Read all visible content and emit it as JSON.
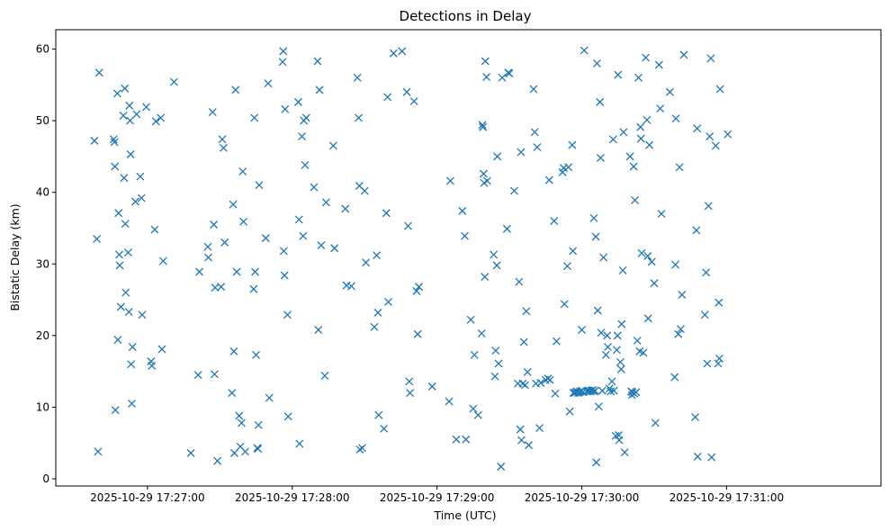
{
  "chart_data": {
    "type": "scatter",
    "title": "Detections in Delay",
    "xlabel": "Time (UTC)",
    "ylabel": "Bistatic Delay (km)",
    "x_start": "2025-10-29 17:26:38",
    "xlim_seconds": [
      -16,
      326
    ],
    "ylim": [
      -1,
      62.7
    ],
    "xticks": [
      {
        "t": 22,
        "label": "2025-10-29 17:27:00"
      },
      {
        "t": 82,
        "label": "2025-10-29 17:28:00"
      },
      {
        "t": 142,
        "label": "2025-10-29 17:29:00"
      },
      {
        "t": 202,
        "label": "2025-10-29 17:30:00"
      },
      {
        "t": 262,
        "label": "2025-10-29 17:31:00"
      }
    ],
    "yticks": [
      0,
      10,
      20,
      30,
      40,
      50,
      60
    ],
    "marker": "x",
    "color": "#1f77b4",
    "points": [
      [
        0,
        47.2
      ],
      [
        1,
        33.5
      ],
      [
        1.5,
        3.8
      ],
      [
        2,
        56.7
      ],
      [
        8,
        47.4
      ],
      [
        8.3,
        47
      ],
      [
        8.5,
        43.6
      ],
      [
        8.7,
        9.6
      ],
      [
        9.5,
        53.8
      ],
      [
        9.7,
        19.4
      ],
      [
        10,
        37.1
      ],
      [
        10.3,
        31.3
      ],
      [
        10.5,
        29.8
      ],
      [
        11,
        24
      ],
      [
        12,
        50.7
      ],
      [
        12.3,
        42
      ],
      [
        12.6,
        54.5
      ],
      [
        12.8,
        35.6
      ],
      [
        13,
        26
      ],
      [
        14,
        31.6
      ],
      [
        14.3,
        23.3
      ],
      [
        14.5,
        52.1
      ],
      [
        14.8,
        50
      ],
      [
        15,
        45.3
      ],
      [
        15.2,
        16
      ],
      [
        15.5,
        10.5
      ],
      [
        15.8,
        18.4
      ],
      [
        17,
        38.7
      ],
      [
        17.5,
        50.9
      ],
      [
        19,
        42.2
      ],
      [
        19.5,
        39.2
      ],
      [
        19.8,
        22.9
      ],
      [
        21.5,
        51.9
      ],
      [
        23.5,
        16.4
      ],
      [
        23.8,
        15.8
      ],
      [
        25,
        34.8
      ],
      [
        25.5,
        49.9
      ],
      [
        27.5,
        50.4
      ],
      [
        28,
        18.1
      ],
      [
        28.5,
        30.4
      ],
      [
        33,
        55.4
      ],
      [
        40,
        3.6
      ],
      [
        43,
        14.5
      ],
      [
        43.5,
        28.9
      ],
      [
        47,
        32.4
      ],
      [
        47.2,
        30.9
      ],
      [
        49,
        51.2
      ],
      [
        49.5,
        35.5
      ],
      [
        49.8,
        14.6
      ],
      [
        50,
        26.7
      ],
      [
        51,
        2.5
      ],
      [
        52.5,
        26.8
      ],
      [
        53,
        47.4
      ],
      [
        53.5,
        46.2
      ],
      [
        54,
        33
      ],
      [
        57,
        12
      ],
      [
        57.5,
        38.3
      ],
      [
        57.8,
        17.8
      ],
      [
        58,
        3.6
      ],
      [
        58.5,
        54.3
      ],
      [
        59,
        28.9
      ],
      [
        60,
        8.8
      ],
      [
        60.5,
        4.5
      ],
      [
        61,
        7.8
      ],
      [
        61.5,
        42.9
      ],
      [
        61.8,
        35.9
      ],
      [
        62.5,
        3.8
      ],
      [
        66,
        26.5
      ],
      [
        66.3,
        50.4
      ],
      [
        66.6,
        28.9
      ],
      [
        67,
        17.3
      ],
      [
        67.5,
        4.3
      ],
      [
        67.8,
        4.2
      ],
      [
        68,
        7.5
      ],
      [
        68.3,
        41
      ],
      [
        71,
        33.6
      ],
      [
        72,
        55.2
      ],
      [
        72.5,
        11.3
      ],
      [
        78,
        58.2
      ],
      [
        78.3,
        59.7
      ],
      [
        78.5,
        31.8
      ],
      [
        78.8,
        28.4
      ],
      [
        79,
        51.6
      ],
      [
        80,
        22.9
      ],
      [
        80.3,
        8.7
      ],
      [
        84.5,
        52.6
      ],
      [
        84.8,
        36.2
      ],
      [
        85,
        4.9
      ],
      [
        86,
        47.8
      ],
      [
        86.5,
        33.9
      ],
      [
        86.8,
        50
      ],
      [
        87.3,
        43.8
      ],
      [
        87.8,
        50.4
      ],
      [
        91,
        40.7
      ],
      [
        92.5,
        58.3
      ],
      [
        92.8,
        20.8
      ],
      [
        93.3,
        54.3
      ],
      [
        94,
        32.6
      ],
      [
        95.5,
        14.4
      ],
      [
        96,
        38.6
      ],
      [
        99,
        46.5
      ],
      [
        99.5,
        32.2
      ],
      [
        104,
        37.7
      ],
      [
        104.5,
        27
      ],
      [
        106.5,
        26.9
      ],
      [
        109,
        56
      ],
      [
        109.5,
        50.4
      ],
      [
        109.8,
        40.9
      ],
      [
        110,
        4.1
      ],
      [
        111,
        4.3
      ],
      [
        112,
        40.2
      ],
      [
        112.5,
        30.2
      ],
      [
        116,
        21.2
      ],
      [
        117,
        31.2
      ],
      [
        117.5,
        23.2
      ],
      [
        117.8,
        8.9
      ],
      [
        120,
        7
      ],
      [
        121,
        37.1
      ],
      [
        121.5,
        53.3
      ],
      [
        121.8,
        24.7
      ],
      [
        124,
        59.4
      ],
      [
        127.5,
        59.7
      ],
      [
        129.5,
        54
      ],
      [
        130,
        35.3
      ],
      [
        130.5,
        13.6
      ],
      [
        130.8,
        12
      ],
      [
        132.5,
        52.7
      ],
      [
        133.5,
        26.2
      ],
      [
        134,
        20.2
      ],
      [
        134.5,
        26.8
      ],
      [
        140,
        12.9
      ],
      [
        147,
        10.8
      ],
      [
        147.5,
        41.6
      ],
      [
        150,
        5.5
      ],
      [
        152.5,
        37.4
      ],
      [
        153.5,
        33.9
      ],
      [
        154,
        5.5
      ],
      [
        156,
        22.2
      ],
      [
        157,
        9.8
      ],
      [
        157.5,
        17.3
      ],
      [
        159,
        8.9
      ],
      [
        160.5,
        20.3
      ],
      [
        160.8,
        49.4
      ],
      [
        161,
        49.1
      ],
      [
        161.3,
        42.6
      ],
      [
        161.5,
        41.3
      ],
      [
        161.8,
        28.2
      ],
      [
        162,
        58.3
      ],
      [
        162.5,
        56.1
      ],
      [
        162.8,
        41.6
      ],
      [
        165.5,
        31.3
      ],
      [
        166,
        14.3
      ],
      [
        166.3,
        17.9
      ],
      [
        166.8,
        29.8
      ],
      [
        167,
        45
      ],
      [
        167.5,
        16.1
      ],
      [
        168.5,
        1.7
      ],
      [
        169,
        56
      ],
      [
        171,
        34.9
      ],
      [
        171.5,
        56.7
      ],
      [
        172,
        56.6
      ],
      [
        174,
        40.2
      ],
      [
        175.5,
        13.3
      ],
      [
        176,
        27.5
      ],
      [
        176.5,
        6.9
      ],
      [
        176.8,
        45.6
      ],
      [
        177,
        5.4
      ],
      [
        177.5,
        13.3
      ],
      [
        178,
        19.1
      ],
      [
        178.5,
        13.1
      ],
      [
        179,
        23.4
      ],
      [
        179.5,
        14.9
      ],
      [
        180,
        4.7
      ],
      [
        182,
        54.4
      ],
      [
        182.5,
        48.4
      ],
      [
        183,
        13.3
      ],
      [
        183.5,
        46.3
      ],
      [
        184.5,
        7.1
      ],
      [
        185,
        13.4
      ],
      [
        187,
        13.8
      ],
      [
        188,
        14
      ],
      [
        188.5,
        41.7
      ],
      [
        188.8,
        13.8
      ],
      [
        190.5,
        36
      ],
      [
        191,
        11.9
      ],
      [
        191.5,
        19.2
      ],
      [
        194,
        42.8
      ],
      [
        194.5,
        43.4
      ],
      [
        194.8,
        24.4
      ],
      [
        196,
        29.7
      ],
      [
        196.5,
        43.5
      ],
      [
        197,
        9.4
      ],
      [
        198,
        46.6
      ],
      [
        198.3,
        31.8
      ],
      [
        198.5,
        12
      ],
      [
        199,
        12
      ],
      [
        199.5,
        12.1
      ],
      [
        200,
        12.2
      ],
      [
        200.5,
        12
      ],
      [
        201,
        12.1
      ],
      [
        201.5,
        12.2
      ],
      [
        202,
        12.3
      ],
      [
        202.5,
        12.1
      ],
      [
        202,
        20.8
      ],
      [
        203,
        59.8
      ],
      [
        204,
        12.2
      ],
      [
        204.5,
        12.3
      ],
      [
        205,
        12.3
      ],
      [
        205.5,
        12.2
      ],
      [
        206,
        12.3
      ],
      [
        206.5,
        12.4
      ],
      [
        207,
        12.2
      ],
      [
        207.5,
        12.3
      ],
      [
        207,
        36.4
      ],
      [
        207.8,
        33.8
      ],
      [
        208,
        2.3
      ],
      [
        208.3,
        58
      ],
      [
        208.6,
        23.5
      ],
      [
        209,
        10.1
      ],
      [
        209.5,
        52.6
      ],
      [
        209.8,
        44.8
      ],
      [
        210,
        20.4
      ],
      [
        210.5,
        12.3
      ],
      [
        211,
        30.9
      ],
      [
        212,
        17.3
      ],
      [
        212.5,
        20
      ],
      [
        212.8,
        18.4
      ],
      [
        213.5,
        12.6
      ],
      [
        214,
        12.2
      ],
      [
        214.5,
        13.6
      ],
      [
        215,
        47.4
      ],
      [
        215.3,
        12.3
      ],
      [
        216,
        6
      ],
      [
        216.5,
        18
      ],
      [
        216.8,
        20
      ],
      [
        217,
        56.4
      ],
      [
        217.3,
        6.1
      ],
      [
        217.5,
        5.4
      ],
      [
        218,
        16.3
      ],
      [
        218.3,
        15.3
      ],
      [
        218.5,
        21.6
      ],
      [
        219,
        29.1
      ],
      [
        219.3,
        48.4
      ],
      [
        219.8,
        3.7
      ],
      [
        222,
        45
      ],
      [
        222.5,
        12.2
      ],
      [
        222.8,
        11.7
      ],
      [
        223,
        12.1
      ],
      [
        223.5,
        43.6
      ],
      [
        223.8,
        11.9
      ],
      [
        224,
        38.9
      ],
      [
        224.5,
        12.1
      ],
      [
        225,
        19.3
      ],
      [
        225.5,
        56
      ],
      [
        226,
        17.8
      ],
      [
        226.3,
        49.1
      ],
      [
        226.5,
        47.5
      ],
      [
        226.8,
        31.5
      ],
      [
        227.5,
        17.6
      ],
      [
        228.5,
        58.8
      ],
      [
        229,
        50.1
      ],
      [
        229.3,
        31.1
      ],
      [
        229.5,
        22.4
      ],
      [
        230,
        46.6
      ],
      [
        231,
        30.3
      ],
      [
        232,
        27.3
      ],
      [
        232.5,
        7.8
      ],
      [
        234,
        57.8
      ],
      [
        234.5,
        51.7
      ],
      [
        235,
        37
      ],
      [
        238.5,
        54
      ],
      [
        240.5,
        14.2
      ],
      [
        240.8,
        29.9
      ],
      [
        241,
        50.3
      ],
      [
        242,
        20.2
      ],
      [
        242.5,
        43.5
      ],
      [
        243,
        20.9
      ],
      [
        243.5,
        25.7
      ],
      [
        244.3,
        59.2
      ],
      [
        249,
        8.6
      ],
      [
        249.5,
        34.7
      ],
      [
        249.8,
        48.9
      ],
      [
        250,
        3.1
      ],
      [
        253,
        22.9
      ],
      [
        253.5,
        28.8
      ],
      [
        254,
        16.1
      ],
      [
        254.5,
        38.1
      ],
      [
        255,
        47.8
      ],
      [
        255.5,
        58.7
      ],
      [
        255.8,
        3
      ],
      [
        257.5,
        46.5
      ],
      [
        258.5,
        16.1
      ],
      [
        258.8,
        24.6
      ],
      [
        259,
        16.8
      ],
      [
        259.3,
        54.4
      ],
      [
        262.5,
        48.1
      ]
    ]
  }
}
